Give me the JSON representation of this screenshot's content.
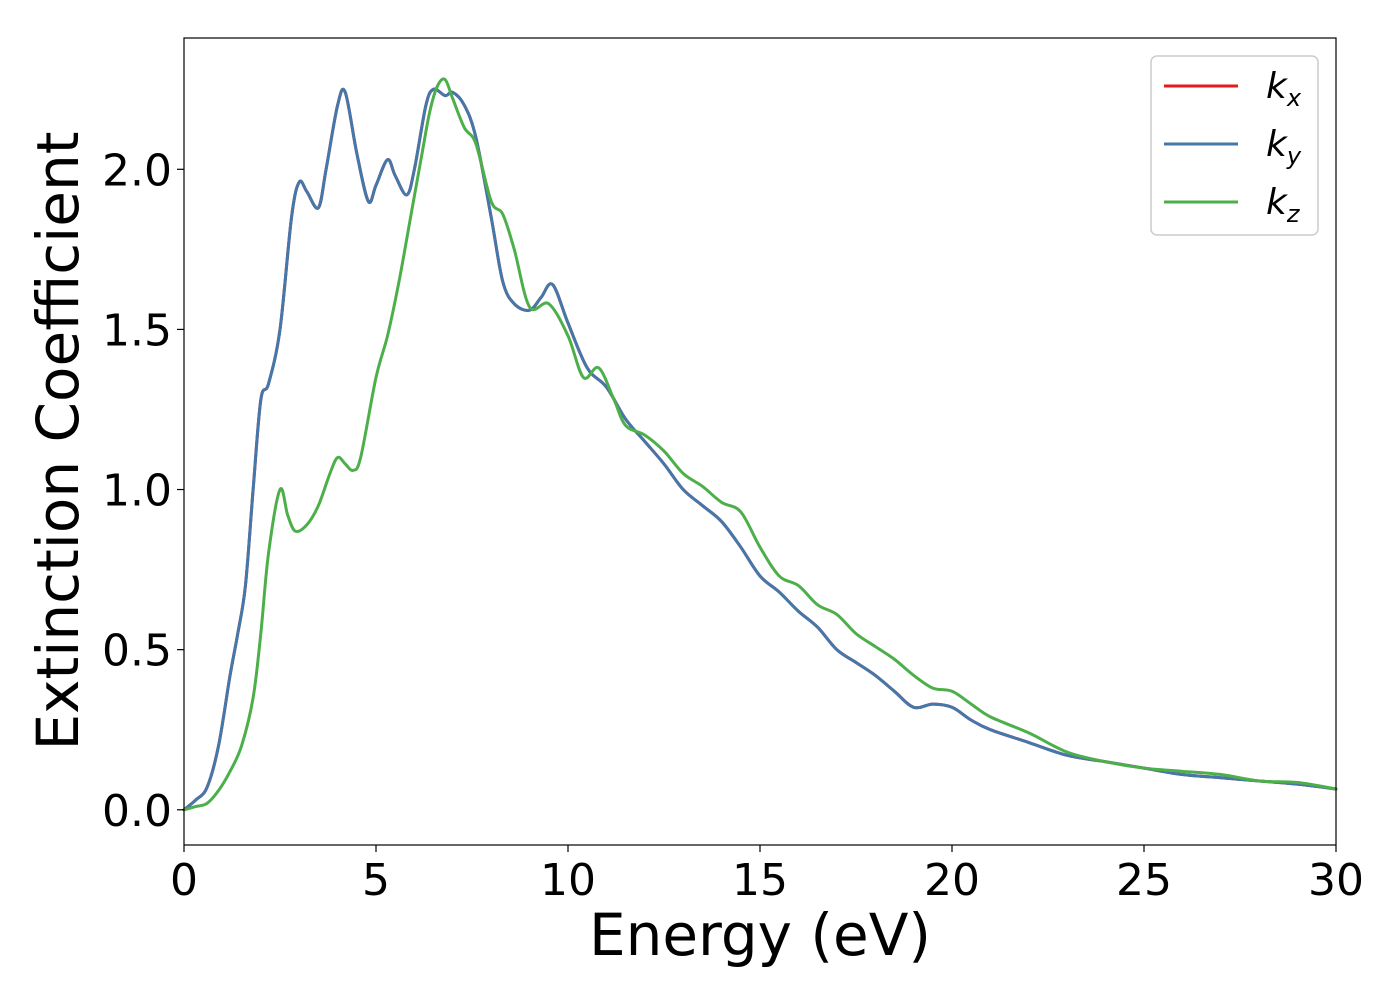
{
  "chart_data": {
    "type": "line",
    "title": "",
    "xlabel": "Energy (eV)",
    "ylabel": "Extinction Coefficient",
    "xlim": [
      0,
      30
    ],
    "ylim": [
      -0.11,
      2.41
    ],
    "x_ticks": [
      0,
      5,
      10,
      15,
      20,
      25,
      30
    ],
    "y_ticks": [
      0.0,
      0.5,
      1.0,
      1.5,
      2.0
    ],
    "x_tick_labels": [
      "0",
      "5",
      "10",
      "15",
      "20",
      "25",
      "30"
    ],
    "y_tick_labels": [
      "0.0",
      "0.5",
      "1.0",
      "1.5",
      "2.0"
    ],
    "grid": false,
    "legend_position": "top-right",
    "series": [
      {
        "name": "k_x",
        "legend_base": "k",
        "legend_sub": "x",
        "color": "#e41a1c",
        "x": [
          0,
          0.3,
          0.6,
          0.9,
          1.2,
          1.4,
          1.6,
          1.8,
          2.0,
          2.2,
          2.5,
          2.8,
          3.0,
          3.2,
          3.5,
          3.7,
          4.0,
          4.2,
          4.5,
          4.8,
          5.0,
          5.3,
          5.5,
          5.8,
          6.0,
          6.3,
          6.5,
          6.8,
          7.0,
          7.3,
          7.6,
          8.0,
          8.3,
          8.6,
          9.0,
          9.3,
          9.6,
          10.0,
          10.5,
          11.0,
          11.5,
          12.0,
          12.5,
          13.0,
          13.5,
          14.0,
          14.5,
          15.0,
          15.5,
          16.0,
          16.5,
          17.0,
          17.5,
          18.0,
          18.5,
          19.0,
          19.5,
          20.0,
          20.5,
          21.0,
          22.0,
          23.0,
          24.0,
          25.0,
          26.0,
          27.0,
          28.0,
          29.0,
          30.0
        ],
        "values": [
          0.0,
          0.03,
          0.07,
          0.2,
          0.42,
          0.55,
          0.7,
          1.0,
          1.28,
          1.33,
          1.5,
          1.85,
          1.96,
          1.93,
          1.88,
          2.0,
          2.2,
          2.24,
          2.05,
          1.9,
          1.95,
          2.03,
          1.98,
          1.92,
          2.0,
          2.2,
          2.25,
          2.23,
          2.24,
          2.2,
          2.1,
          1.85,
          1.65,
          1.58,
          1.56,
          1.6,
          1.64,
          1.52,
          1.38,
          1.32,
          1.22,
          1.15,
          1.08,
          1.0,
          0.95,
          0.9,
          0.82,
          0.73,
          0.68,
          0.62,
          0.57,
          0.5,
          0.46,
          0.42,
          0.37,
          0.32,
          0.33,
          0.32,
          0.28,
          0.25,
          0.21,
          0.17,
          0.15,
          0.13,
          0.11,
          0.1,
          0.09,
          0.08,
          0.065
        ]
      },
      {
        "name": "k_y",
        "legend_base": "k",
        "legend_sub": "y",
        "color": "#4477aa",
        "x": [
          0,
          0.3,
          0.6,
          0.9,
          1.2,
          1.4,
          1.6,
          1.8,
          2.0,
          2.2,
          2.5,
          2.8,
          3.0,
          3.2,
          3.5,
          3.7,
          4.0,
          4.2,
          4.5,
          4.8,
          5.0,
          5.3,
          5.5,
          5.8,
          6.0,
          6.3,
          6.5,
          6.8,
          7.0,
          7.3,
          7.6,
          8.0,
          8.3,
          8.6,
          9.0,
          9.3,
          9.6,
          10.0,
          10.5,
          11.0,
          11.5,
          12.0,
          12.5,
          13.0,
          13.5,
          14.0,
          14.5,
          15.0,
          15.5,
          16.0,
          16.5,
          17.0,
          17.5,
          18.0,
          18.5,
          19.0,
          19.5,
          20.0,
          20.5,
          21.0,
          22.0,
          23.0,
          24.0,
          25.0,
          26.0,
          27.0,
          28.0,
          29.0,
          30.0
        ],
        "values": [
          0.0,
          0.03,
          0.07,
          0.2,
          0.42,
          0.55,
          0.7,
          1.0,
          1.28,
          1.33,
          1.5,
          1.85,
          1.96,
          1.93,
          1.88,
          2.0,
          2.2,
          2.24,
          2.05,
          1.9,
          1.95,
          2.03,
          1.98,
          1.92,
          2.0,
          2.2,
          2.25,
          2.23,
          2.24,
          2.2,
          2.1,
          1.85,
          1.65,
          1.58,
          1.56,
          1.6,
          1.64,
          1.52,
          1.38,
          1.32,
          1.22,
          1.15,
          1.08,
          1.0,
          0.95,
          0.9,
          0.82,
          0.73,
          0.68,
          0.62,
          0.57,
          0.5,
          0.46,
          0.42,
          0.37,
          0.32,
          0.33,
          0.32,
          0.28,
          0.25,
          0.21,
          0.17,
          0.15,
          0.13,
          0.11,
          0.1,
          0.09,
          0.08,
          0.065
        ]
      },
      {
        "name": "k_z",
        "legend_base": "k",
        "legend_sub": "z",
        "color": "#4daf4a",
        "x": [
          0,
          0.3,
          0.6,
          0.9,
          1.2,
          1.5,
          1.8,
          2.0,
          2.2,
          2.5,
          2.7,
          2.9,
          3.2,
          3.5,
          3.8,
          4.0,
          4.2,
          4.4,
          4.6,
          5.0,
          5.3,
          5.6,
          5.9,
          6.2,
          6.4,
          6.6,
          6.8,
          7.0,
          7.3,
          7.6,
          8.0,
          8.3,
          8.6,
          9.0,
          9.5,
          10.0,
          10.4,
          10.8,
          11.2,
          11.5,
          12.0,
          12.5,
          13.0,
          13.5,
          14.0,
          14.5,
          15.0,
          15.5,
          16.0,
          16.5,
          17.0,
          17.5,
          18.0,
          18.5,
          19.0,
          19.5,
          20.0,
          20.5,
          21.0,
          22.0,
          23.0,
          24.0,
          25.0,
          26.0,
          27.0,
          28.0,
          29.0,
          30.0
        ],
        "values": [
          0.0,
          0.01,
          0.02,
          0.06,
          0.12,
          0.2,
          0.35,
          0.55,
          0.8,
          1.0,
          0.92,
          0.87,
          0.89,
          0.95,
          1.05,
          1.1,
          1.08,
          1.06,
          1.1,
          1.35,
          1.48,
          1.65,
          1.85,
          2.05,
          2.18,
          2.26,
          2.28,
          2.22,
          2.13,
          2.08,
          1.9,
          1.86,
          1.75,
          1.57,
          1.58,
          1.48,
          1.35,
          1.38,
          1.28,
          1.2,
          1.17,
          1.12,
          1.05,
          1.01,
          0.96,
          0.93,
          0.82,
          0.73,
          0.7,
          0.64,
          0.61,
          0.55,
          0.51,
          0.47,
          0.42,
          0.38,
          0.37,
          0.33,
          0.29,
          0.24,
          0.18,
          0.15,
          0.13,
          0.12,
          0.11,
          0.09,
          0.085,
          0.065
        ]
      }
    ]
  }
}
